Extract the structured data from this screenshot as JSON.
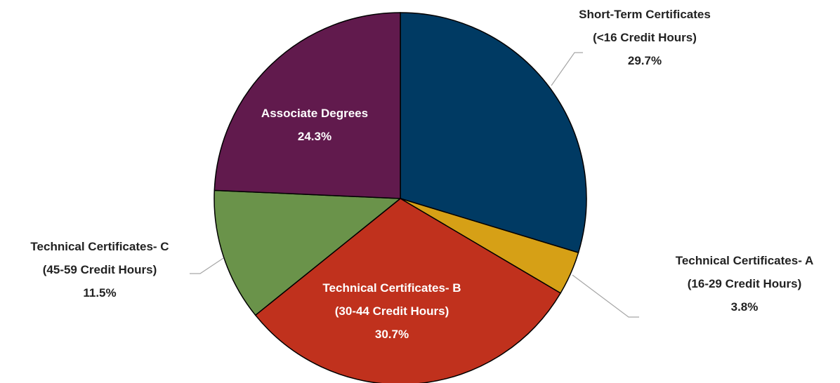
{
  "chart_data": {
    "type": "pie",
    "categories": [
      [
        "Short-Term Certificates",
        "(<16 Credit Hours)"
      ],
      [
        "Technical Certificates- A",
        "(16-29 Credit Hours)"
      ],
      [
        "Technical Certificates- B",
        "(30-44 Credit Hours)"
      ],
      [
        "Technical Certificates- C",
        "(45-59 Credit Hours)"
      ],
      [
        "Associate Degrees"
      ]
    ],
    "values": [
      29.7,
      3.8,
      30.7,
      11.5,
      24.3
    ],
    "value_labels": [
      "29.7%",
      "3.8%",
      "30.7%",
      "11.5%",
      "24.3%"
    ],
    "colors": [
      "#003a63",
      "#d6a016",
      "#c0311d",
      "#6a934a",
      "#611a4d"
    ]
  }
}
